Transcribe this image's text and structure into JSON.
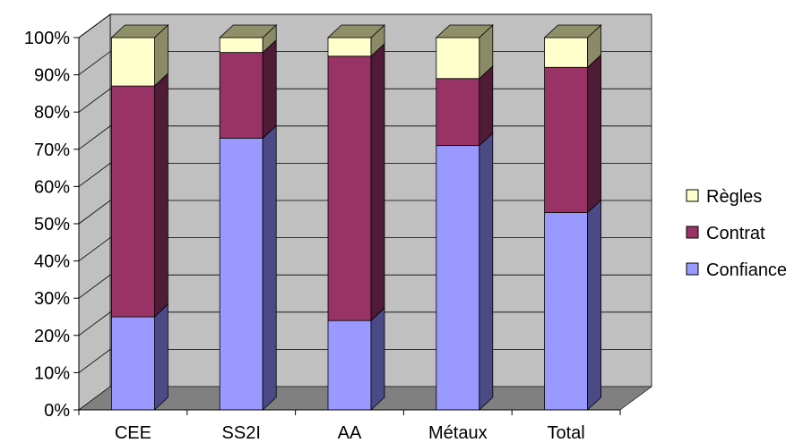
{
  "chart_data": {
    "type": "bar",
    "stacked": true,
    "percent": true,
    "three_d": true,
    "categories": [
      "CEE",
      "SS2I",
      "AA",
      "Métaux",
      "Total"
    ],
    "series": [
      {
        "name": "Confiance",
        "values": [
          25,
          73,
          24,
          71,
          53
        ],
        "color": "#9999ff",
        "side_color": "#4a4a85",
        "top_color": "#9999ff"
      },
      {
        "name": "Contrat",
        "values": [
          62,
          23,
          71,
          18,
          39
        ],
        "color": "#993366",
        "side_color": "#4f1b36",
        "top_color": "#a04070"
      },
      {
        "name": "Règles",
        "values": [
          13,
          4,
          5,
          11,
          8
        ],
        "color": "#ffffcc",
        "side_color": "#8a8a66",
        "top_color": "#8f8f6a"
      }
    ],
    "yticks": [
      "0%",
      "10%",
      "20%",
      "30%",
      "40%",
      "50%",
      "60%",
      "70%",
      "80%",
      "90%",
      "100%"
    ],
    "ylim": [
      0,
      100
    ],
    "grid": true,
    "legend": "right",
    "wall_color": "#c0c0c0",
    "floor_color": "#808080"
  }
}
